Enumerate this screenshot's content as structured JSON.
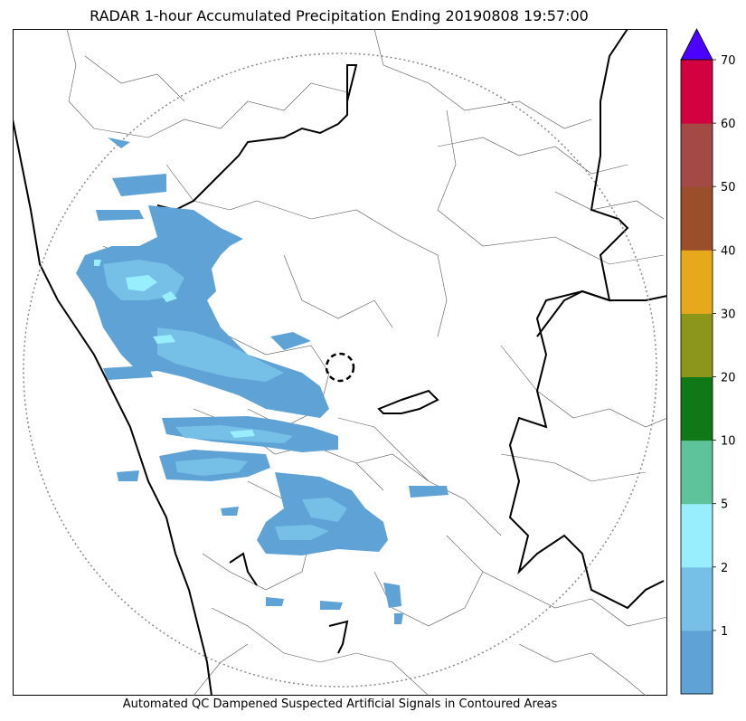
{
  "title": "RADAR 1-hour Accumulated Precipitation Ending 20190808 19:57:00",
  "caption": "Automated QC Dampened Suspected Artificial Signals in Contoured Areas",
  "chart_data": {
    "type": "heatmap",
    "title": "RADAR 1-hour Accumulated Precipitation Ending 20190808 19:57:00",
    "colorbar": {
      "boundaries": [
        0,
        1,
        2,
        5,
        10,
        20,
        30,
        40,
        50,
        60,
        70
      ],
      "tick_labels": [
        "1",
        "2",
        "5",
        "10",
        "20",
        "30",
        "40",
        "50",
        "60",
        "70"
      ],
      "colors": [
        "#5fa2d6",
        "#76bfe6",
        "#98eefc",
        "#5ec39a",
        "#117817",
        "#8c9618",
        "#e6a91b",
        "#9a4e2a",
        "#a44a45",
        "#d3013f"
      ],
      "extend_color": "#4c00ff",
      "extend": "max"
    },
    "radar_range_ring": "dotted circle",
    "radar_site_marker": "dashed circle"
  }
}
